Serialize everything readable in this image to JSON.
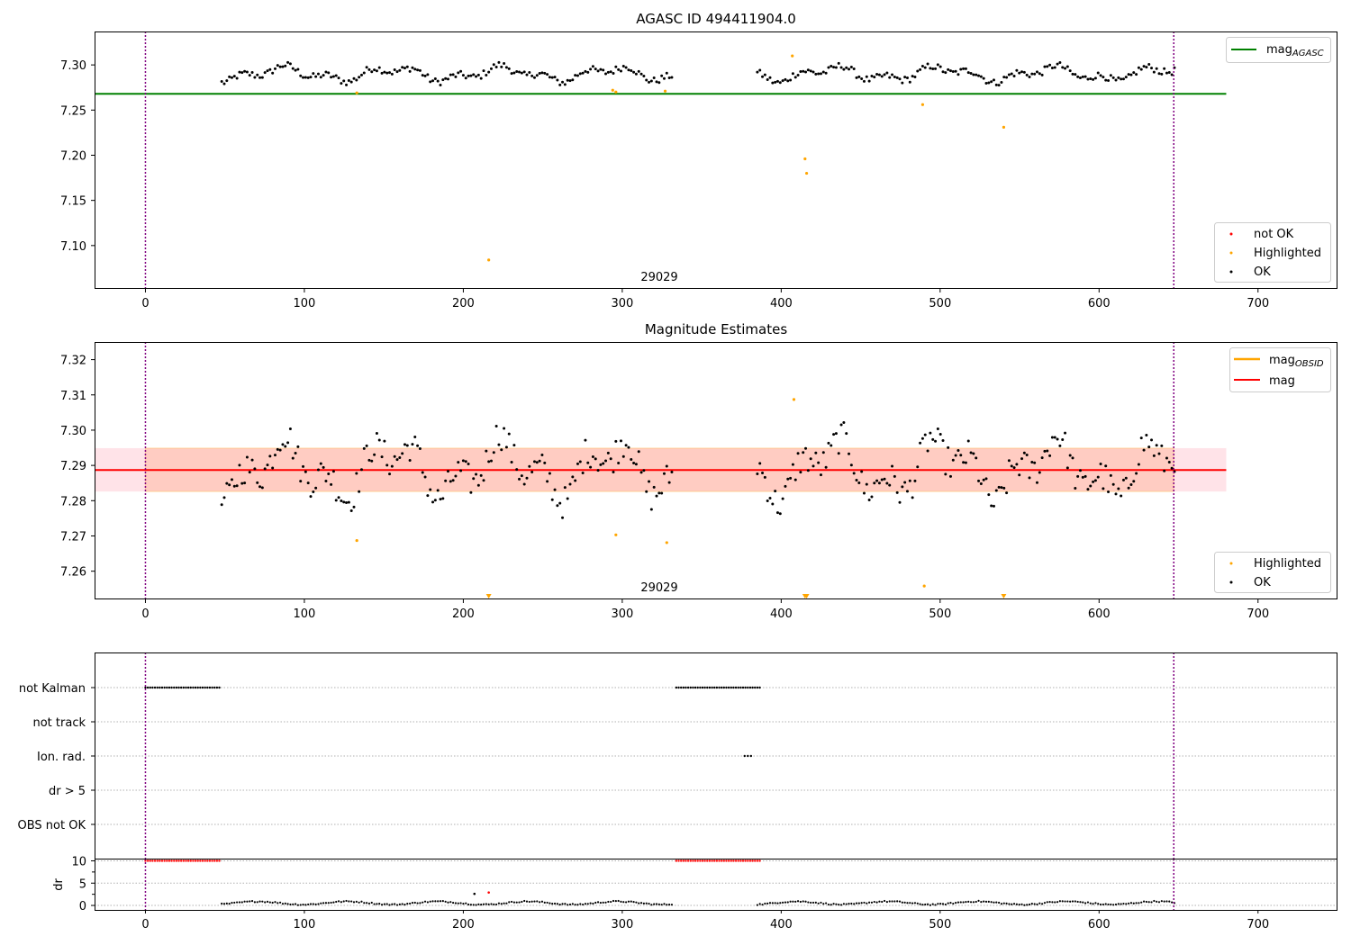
{
  "chart_data": [
    {
      "type": "scatter",
      "title": "AGASC ID 494411904.0",
      "xlim": [
        -32,
        750
      ],
      "ylim": [
        7.052,
        7.337
      ],
      "xticks": [
        "0",
        "100",
        "200",
        "300",
        "400",
        "500",
        "600",
        "700"
      ],
      "yticks": [
        "7.10",
        "7.15",
        "7.20",
        "7.25",
        "7.30"
      ],
      "vlines": [
        0,
        647
      ],
      "obsid_label": "29029",
      "obsid_label_x": 323,
      "legend_top": [
        "mag",
        "AGASC"
      ],
      "legend_bottom": [
        "not OK",
        "Highlighted",
        "OK"
      ],
      "colors": {
        "agasc": "#008000",
        "not_ok": "#ff0000",
        "highlighted": "#ffa500",
        "ok": "#000000",
        "vline": "#800080"
      },
      "agasc_mag": 7.268,
      "agasc_line_x": [
        -32,
        680
      ],
      "ok_segments": [
        [
          48,
          332
        ],
        [
          385,
          648
        ]
      ],
      "highlighted": [
        [
          133,
          7.269
        ],
        [
          216,
          7.084
        ],
        [
          294,
          7.272
        ],
        [
          296,
          7.27
        ],
        [
          327,
          7.271
        ],
        [
          407,
          7.31
        ],
        [
          415,
          7.196
        ],
        [
          416,
          7.18
        ],
        [
          489,
          7.256
        ],
        [
          540,
          7.231
        ]
      ]
    },
    {
      "type": "scatter",
      "title": "Magnitude Estimates",
      "xlim": [
        -32,
        750
      ],
      "ylim": [
        7.252,
        7.325
      ],
      "xticks": [
        "0",
        "100",
        "200",
        "300",
        "400",
        "500",
        "600",
        "700"
      ],
      "yticks": [
        "7.26",
        "7.27",
        "7.28",
        "7.29",
        "7.30",
        "7.31",
        "7.32"
      ],
      "vlines": [
        0,
        647
      ],
      "obsid_label": "29029",
      "obsid_label_x": 323,
      "legend_top": [
        "mag",
        "OBSID",
        "mag"
      ],
      "legend_bottom": [
        "Highlighted",
        "OK"
      ],
      "colors": {
        "mag": "#ff0000",
        "mag_obsid": "#ffa500",
        "band_pink": "#ffc0cb",
        "band_orange": "#ffa07a",
        "highlighted": "#ffa500",
        "ok": "#000000"
      },
      "mag": 7.2887,
      "band": [
        7.2826,
        7.2949
      ],
      "band_pink_x": [
        -32,
        680
      ],
      "band_orange_x": [
        0,
        647
      ],
      "highlighted": [
        [
          133,
          7.2687
        ],
        [
          296,
          7.2703
        ],
        [
          328,
          7.2681
        ],
        [
          408,
          7.3087
        ],
        [
          490,
          7.2558
        ]
      ],
      "offscale_low_markers": [
        216,
        415,
        416,
        540
      ]
    },
    {
      "type": "scatter",
      "title": "",
      "xlim": [
        -32,
        750
      ],
      "flag_rows": [
        "not Kalman",
        "not track",
        "Ion. rad.",
        "dr > 5",
        "OBS not OK"
      ],
      "not_kalman_ranges": [
        [
          0,
          47
        ],
        [
          334,
          387
        ]
      ],
      "ion_rad_points": [
        377,
        379,
        381
      ],
      "dr_yticks": [
        "0",
        "5",
        "10"
      ],
      "dr_ylabel": "dr",
      "dr_ylim": [
        -1,
        10.5
      ],
      "dr_clip_ranges": [
        [
          0,
          47
        ],
        [
          334,
          387
        ]
      ],
      "dr_outliers": [
        [
          207,
          2.6
        ],
        [
          216,
          2.9
        ]
      ],
      "xticks": [
        "0",
        "100",
        "200",
        "300",
        "400",
        "500",
        "600",
        "700"
      ]
    }
  ]
}
